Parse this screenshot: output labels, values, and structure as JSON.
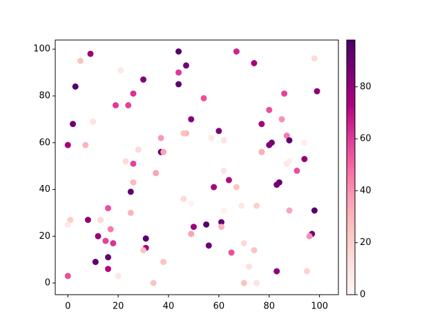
{
  "chart_data": {
    "type": "scatter",
    "cmap": "RdPu",
    "xlim": [
      -5,
      107.5
    ],
    "ylim": [
      -5,
      103.9
    ],
    "xticks": [
      0,
      20,
      40,
      60,
      80,
      100
    ],
    "yticks": [
      0,
      20,
      40,
      60,
      80,
      100
    ],
    "clim": [
      0,
      98
    ],
    "cticks": [
      0,
      20,
      40,
      60,
      80
    ],
    "series": [
      {
        "x": [
          9,
          44,
          67,
          47,
          74,
          5,
          21,
          44,
          30,
          3,
          44,
          99,
          26,
          86,
          54,
          24,
          19,
          80,
          49,
          85,
          2,
          10,
          77,
          60,
          47,
          46,
          57,
          62,
          87,
          88,
          81,
          80,
          0,
          7,
          37,
          37,
          38,
          28,
          77,
          94,
          87,
          88,
          94,
          23,
          26,
          91,
          35,
          62,
          25,
          26,
          64,
          58,
          67,
          84,
          83,
          46,
          49,
          69,
          75,
          88,
          98,
          16,
          25,
          1,
          0,
          8,
          13,
          55,
          61,
          62,
          61,
          50,
          17,
          97,
          96,
          49,
          12,
          31,
          15,
          18,
          70,
          56,
          31,
          30,
          74,
          65,
          16,
          11,
          38,
          72,
          16,
          83,
          95,
          0,
          20,
          34,
          70,
          75,
          98
        ],
        "y": [
          98,
          99,
          99,
          93,
          94,
          95,
          91,
          90,
          87,
          84,
          85,
          82,
          81,
          81,
          79,
          76,
          76,
          74,
          70,
          70,
          68,
          69,
          68,
          65,
          64,
          64,
          62,
          61,
          63,
          61,
          60,
          59,
          59,
          59,
          62,
          56,
          56,
          57,
          56,
          60,
          51,
          52,
          53,
          52,
          51,
          48,
          47,
          48,
          39,
          43,
          44,
          41,
          41,
          43,
          42,
          36,
          34,
          33,
          33,
          31,
          31,
          32,
          30,
          27,
          25,
          27,
          27,
          25,
          26,
          31,
          24,
          24,
          23,
          21,
          20,
          21,
          20,
          19,
          18,
          17,
          17,
          16,
          15,
          14,
          14,
          13,
          11,
          9,
          9,
          7,
          6,
          5,
          5,
          3,
          3,
          0,
          0,
          0,
          96
        ],
        "c": [
          78,
          95,
          65,
          88,
          75,
          25,
          8,
          60,
          85,
          95,
          92,
          82,
          62,
          58,
          55,
          58,
          60,
          55,
          82,
          40,
          88,
          10,
          75,
          85,
          30,
          25,
          8,
          10,
          45,
          92,
          88,
          85,
          75,
          30,
          38,
          92,
          35,
          15,
          32,
          5,
          8,
          5,
          80,
          15,
          58,
          55,
          35,
          10,
          92,
          28,
          72,
          75,
          25,
          90,
          88,
          15,
          3,
          8,
          20,
          35,
          95,
          55,
          30,
          20,
          8,
          82,
          15,
          95,
          92,
          3,
          30,
          78,
          45,
          88,
          40,
          35,
          78,
          95,
          58,
          62,
          15,
          88,
          75,
          25,
          25,
          55,
          92,
          92,
          25,
          12,
          72,
          80,
          18,
          55,
          8,
          25,
          25,
          10,
          15
        ]
      }
    ]
  }
}
